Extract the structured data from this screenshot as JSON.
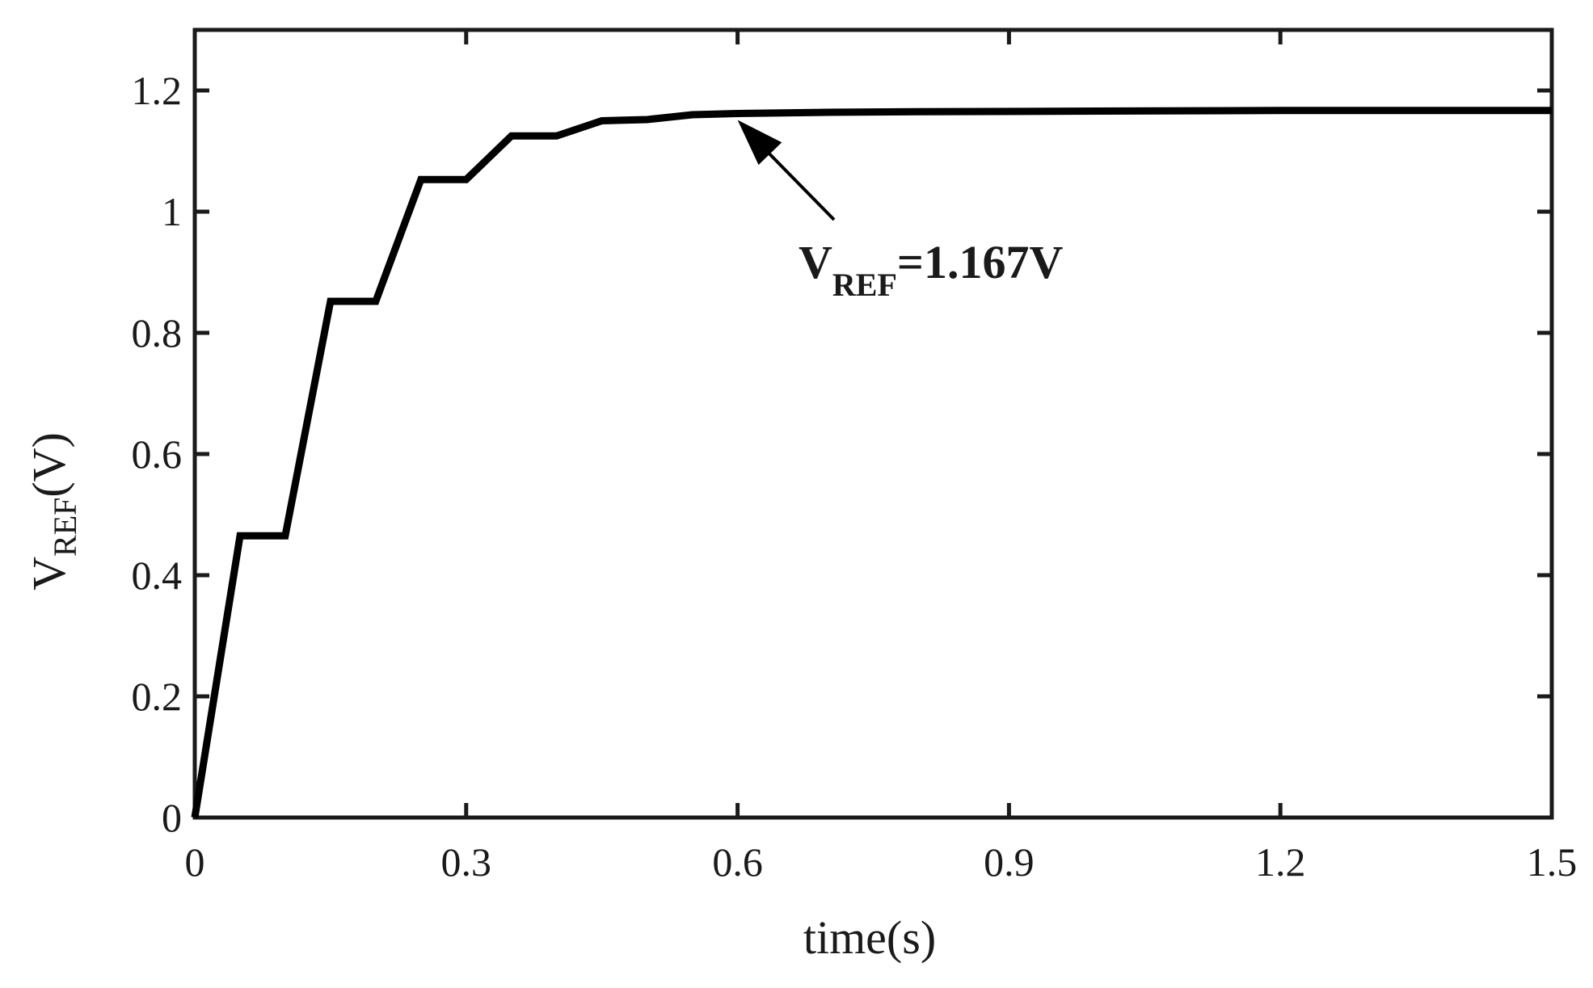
{
  "chart_data": {
    "type": "line",
    "title": "",
    "xlabel": "time(s)",
    "ylabel": {
      "main": "V",
      "sub": "REF",
      "unit": "(V)"
    },
    "xlim": [
      0,
      1.5
    ],
    "ylim": [
      0,
      1.3
    ],
    "xticks": [
      0,
      0.3,
      0.6,
      0.9,
      1.2,
      1.5
    ],
    "xtick_labels": [
      "0",
      "0.3",
      "0.6",
      "0.9",
      "1.2",
      "1.5"
    ],
    "yticks": [
      0,
      0.2,
      0.4,
      0.6,
      0.8,
      1.0,
      1.2
    ],
    "ytick_labels": [
      "0",
      "0.2",
      "0.4",
      "0.6",
      "0.8",
      "1",
      "1.2"
    ],
    "grid": false,
    "line_color": "#000000",
    "series": [
      {
        "x": [
          0,
          0.05,
          0.1,
          0.15,
          0.2,
          0.25,
          0.3,
          0.35,
          0.4,
          0.45,
          0.5,
          0.55,
          0.6,
          0.7,
          0.8,
          1.0,
          1.2,
          1.5
        ],
        "y": [
          0,
          0.465,
          0.465,
          0.852,
          0.852,
          1.053,
          1.053,
          1.125,
          1.125,
          1.15,
          1.152,
          1.16,
          1.162,
          1.164,
          1.165,
          1.166,
          1.167,
          1.167
        ]
      }
    ],
    "annotations": [
      {
        "text_main": "V",
        "text_sub": "REF",
        "text_rest": "=1.167V",
        "points_to": {
          "x": 0.6,
          "y": 1.162
        }
      }
    ]
  }
}
